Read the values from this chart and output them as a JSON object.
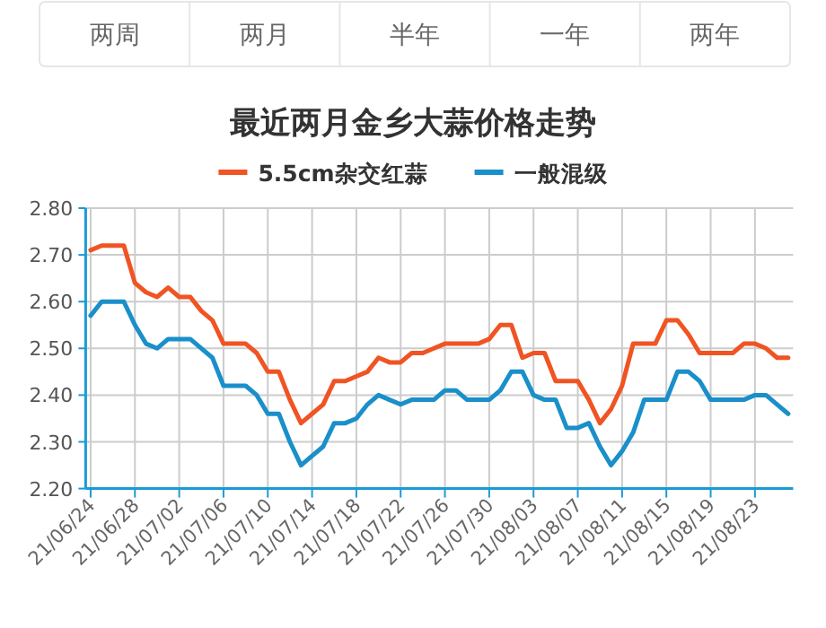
{
  "chart_data": {
    "type": "line",
    "title": "最近两月金乡大蒜价格走势",
    "annotations": [
      "两周",
      "两月",
      "半年",
      "一年",
      "两年"
    ],
    "categories": [
      "21/06/24",
      null,
      null,
      null,
      "21/06/28",
      null,
      null,
      null,
      "21/07/02",
      null,
      null,
      null,
      "21/07/06",
      null,
      null,
      null,
      "21/07/10",
      null,
      null,
      null,
      "21/07/14",
      null,
      null,
      null,
      "21/07/18",
      null,
      null,
      null,
      "21/07/22",
      null,
      null,
      null,
      "21/07/26",
      null,
      null,
      null,
      "21/07/30",
      null,
      null,
      null,
      "21/08/03",
      null,
      null,
      null,
      "21/08/07",
      null,
      null,
      null,
      "21/08/11",
      null,
      null,
      null,
      "21/08/15",
      null,
      null,
      null,
      "21/08/19",
      null,
      null,
      null,
      "21/08/23",
      null,
      null,
      null
    ],
    "series": [
      {
        "name": "5.5cm杂交红蒜",
        "color": "#f05423",
        "values": [
          2.71,
          2.72,
          2.72,
          2.72,
          2.64,
          2.62,
          2.61,
          2.63,
          2.61,
          2.61,
          2.58,
          2.56,
          2.51,
          2.51,
          2.51,
          2.49,
          2.45,
          2.45,
          2.39,
          2.34,
          2.36,
          2.38,
          2.43,
          2.43,
          2.44,
          2.45,
          2.48,
          2.47,
          2.47,
          2.49,
          2.49,
          2.5,
          2.51,
          2.51,
          2.51,
          2.51,
          2.52,
          2.55,
          2.55,
          2.48,
          2.49,
          2.49,
          2.43,
          2.43,
          2.43,
          2.39,
          2.34,
          2.37,
          2.42,
          2.51,
          2.51,
          2.51,
          2.56,
          2.56,
          2.53,
          2.49,
          2.49,
          2.49,
          2.49,
          2.51,
          2.51,
          2.5,
          2.48,
          2.48
        ]
      },
      {
        "name": "一般混级",
        "color": "#1a8fc9",
        "values": [
          2.57,
          2.6,
          2.6,
          2.6,
          2.55,
          2.51,
          2.5,
          2.52,
          2.52,
          2.52,
          2.5,
          2.48,
          2.42,
          2.42,
          2.42,
          2.4,
          2.36,
          2.36,
          2.3,
          2.25,
          2.27,
          2.29,
          2.34,
          2.34,
          2.35,
          2.38,
          2.4,
          2.39,
          2.38,
          2.39,
          2.39,
          2.39,
          2.41,
          2.41,
          2.39,
          2.39,
          2.39,
          2.41,
          2.45,
          2.45,
          2.4,
          2.39,
          2.39,
          2.33,
          2.33,
          2.34,
          2.29,
          2.25,
          2.28,
          2.32,
          2.39,
          2.39,
          2.39,
          2.45,
          2.45,
          2.43,
          2.39,
          2.39,
          2.39,
          2.39,
          2.4,
          2.4,
          2.38,
          2.36
        ]
      }
    ],
    "ylim": [
      2.2,
      2.8
    ],
    "yticks": [
      {
        "value": 2.2,
        "label": "2.20"
      },
      {
        "value": 2.3,
        "label": "2.30"
      },
      {
        "value": 2.4,
        "label": "2.40"
      },
      {
        "value": 2.5,
        "label": "2.50"
      },
      {
        "value": 2.6,
        "label": "2.60"
      },
      {
        "value": 2.7,
        "label": "2.70"
      },
      {
        "value": 2.8,
        "label": "2.80"
      }
    ],
    "grid": true,
    "legend": "top",
    "marker": "none",
    "line_style": "solid"
  }
}
